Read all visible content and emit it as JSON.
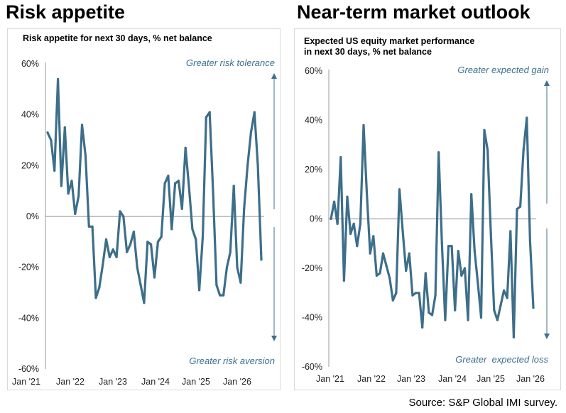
{
  "headings": {
    "left": "Risk appetite",
    "right": "Near-term market outlook"
  },
  "source": "Source: S&P Global IMI survey.",
  "colors": {
    "line": "#3d6e8a",
    "annotation": "#3d7090",
    "axis": "#9a9a9a",
    "zero": "#888888"
  },
  "chart_data": [
    {
      "type": "line",
      "title": "Risk appetite for next 30 days, % net balance",
      "title_lines": [
        "Risk appetite for next 30 days, % net balance"
      ],
      "ylabel": "% net balance",
      "ylim": [
        -60,
        60
      ],
      "yticks": [
        60,
        40,
        20,
        0,
        -20,
        -40,
        -60
      ],
      "yticklabels": [
        "60%",
        "40%",
        "20%",
        "0%",
        "-20%",
        "-40%",
        "-60%"
      ],
      "xticklabels": [
        "Jan '21",
        "Jan '22",
        "Jan '23",
        "Jan '24",
        "Jan '25",
        "Jan '26"
      ],
      "start": "Jan 2021",
      "frequency": "monthly",
      "annotations": {
        "top": "Greater risk tolerance",
        "bottom": "Greater risk aversion"
      },
      "series": [
        {
          "name": "Risk appetite",
          "values": [
            33,
            30,
            18,
            54,
            12,
            35,
            9,
            14,
            1,
            8,
            36,
            24,
            -4,
            -4,
            -32,
            -28,
            -19,
            -9,
            -16,
            -13,
            -16,
            2,
            0,
            -14,
            -11,
            -6,
            -20,
            -27,
            -34,
            -10,
            -11,
            -24,
            -10,
            -8,
            13,
            16,
            -5,
            13,
            14,
            3,
            27,
            12,
            -5,
            -9,
            -29,
            -8,
            39,
            41,
            10,
            -27,
            -31,
            -31,
            -20,
            -14,
            12,
            -20,
            -26,
            3,
            20,
            33,
            41,
            20,
            -17
          ]
        }
      ]
    },
    {
      "type": "line",
      "title": "Expected US equity market performance in next 30 days, % net balance",
      "title_lines": [
        "Expected US equity market performance",
        "in next 30 days, % net balance"
      ],
      "ylabel": "% net balance",
      "ylim": [
        -60,
        60
      ],
      "yticks": [
        60,
        40,
        20,
        0,
        -20,
        -40,
        -60
      ],
      "yticklabels": [
        "60%",
        "40%",
        "20%",
        "0%",
        "-20%",
        "-40%",
        "-60%"
      ],
      "xticklabels": [
        "Jan '21",
        "Jan '22",
        "Jan '23",
        "Jan '24",
        "Jan '25",
        "Jan '26"
      ],
      "start": "Jan 2021",
      "frequency": "monthly",
      "annotations": {
        "top": "Greater expected gain",
        "bottom": "Greater  expected loss"
      },
      "series": [
        {
          "name": "Expected US equity market performance",
          "values": [
            0,
            7,
            -2,
            25,
            -25,
            9,
            -6,
            -2,
            -11,
            -2,
            38,
            10,
            -14,
            -7,
            -23,
            -22,
            -14,
            -19,
            -24,
            -33,
            -30,
            12,
            -5,
            -21,
            -14,
            -31,
            -30,
            -30,
            -44,
            -22,
            -38,
            -39,
            -31,
            27,
            -10,
            -41,
            -11,
            -11,
            -37,
            -13,
            -23,
            -20,
            -41,
            10,
            -13,
            -26,
            -40,
            36,
            28,
            -6,
            -37,
            -41,
            -35,
            -29,
            -32,
            -5,
            -48,
            4,
            5,
            28,
            41,
            -9,
            -36
          ]
        }
      ]
    }
  ]
}
